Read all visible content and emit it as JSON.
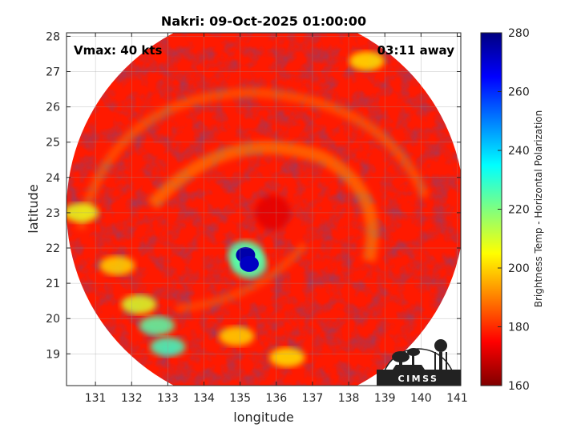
{
  "chart_data": {
    "type": "heatmap",
    "title": "Nakri: 09-Oct-2025 01:00:00",
    "xlabel": "longitude",
    "ylabel": "latitude",
    "xlim": [
      130.2,
      141.1
    ],
    "ylim": [
      18.1,
      28.1
    ],
    "xticks": [
      131,
      132,
      133,
      134,
      135,
      136,
      137,
      138,
      139,
      140,
      141
    ],
    "yticks": [
      19,
      20,
      21,
      22,
      23,
      24,
      25,
      26,
      27,
      28
    ],
    "grid": true,
    "annotations": {
      "vmax": "Vmax: 40 kts",
      "time_away": "03:11 away"
    },
    "swath": {
      "center": [
        135.7,
        23.1
      ],
      "radius_deg": 5.5
    },
    "storm_center": [
      135.9,
      23.0
    ],
    "features": [
      {
        "kind": "cold-core",
        "lon": 135.15,
        "lat": 21.8,
        "temp": 165
      },
      {
        "kind": "cold-core",
        "lon": 135.25,
        "lat": 21.55,
        "temp": 168
      },
      {
        "kind": "cloud-band",
        "lon": 132.7,
        "lat": 19.8,
        "temp": 215
      },
      {
        "kind": "cloud-band",
        "lon": 133.0,
        "lat": 19.2,
        "temp": 212
      },
      {
        "kind": "cloud-band",
        "lon": 132.2,
        "lat": 20.4,
        "temp": 230
      },
      {
        "kind": "cloud-band",
        "lon": 131.6,
        "lat": 21.5,
        "temp": 240
      },
      {
        "kind": "cloud-band",
        "lon": 130.6,
        "lat": 23.0,
        "temp": 232
      },
      {
        "kind": "cloud-band",
        "lon": 134.9,
        "lat": 19.5,
        "temp": 240
      },
      {
        "kind": "cloud-band",
        "lon": 136.3,
        "lat": 18.9,
        "temp": 238
      },
      {
        "kind": "cloud-band",
        "lon": 138.5,
        "lat": 27.3,
        "temp": 238
      }
    ],
    "colorbar": {
      "label": "Brightness Temp - Horizontal Polarization",
      "range": [
        160,
        280
      ],
      "ticks": [
        160,
        180,
        200,
        220,
        240,
        260,
        280
      ],
      "colormap": "jet"
    }
  },
  "logo": {
    "text": "CIMSS"
  }
}
